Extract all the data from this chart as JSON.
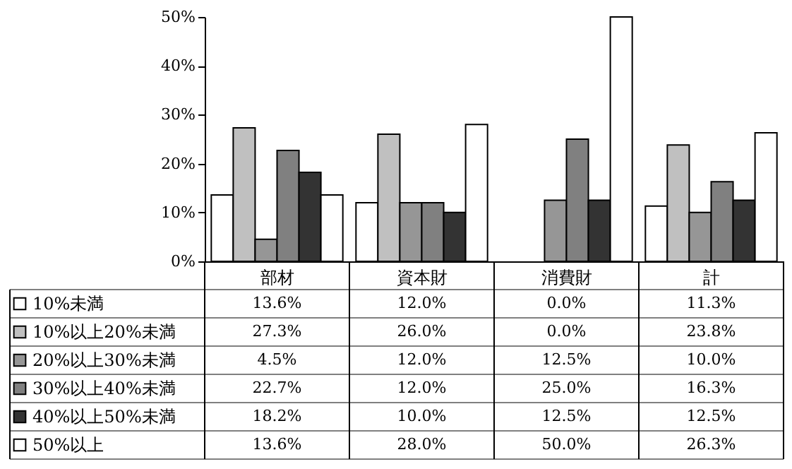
{
  "chart_data": {
    "type": "bar",
    "categories": [
      "部材",
      "資本財",
      "消費財",
      "計"
    ],
    "ylim": [
      0,
      50
    ],
    "yticks": [
      {
        "value": 0,
        "label": "0%"
      },
      {
        "value": 10,
        "label": "10%"
      },
      {
        "value": 20,
        "label": "20%"
      },
      {
        "value": 30,
        "label": "30%"
      },
      {
        "value": 40,
        "label": "40%"
      },
      {
        "value": 50,
        "label": "50%"
      }
    ],
    "legend": "bottom left",
    "grid": false,
    "series": [
      {
        "name": "10%未満",
        "color": "#ffffff",
        "values": [
          13.6,
          12.0,
          0.0,
          11.3
        ],
        "value_labels": [
          "13.6%",
          "12.0%",
          "0.0%",
          "11.3%"
        ]
      },
      {
        "name": "10%以上20%未満",
        "color": "#c0c0c0",
        "values": [
          27.3,
          26.0,
          0.0,
          23.8
        ],
        "value_labels": [
          "27.3%",
          "26.0%",
          "0.0%",
          "23.8%"
        ]
      },
      {
        "name": "20%以上30%未満",
        "color": "#969696",
        "values": [
          4.5,
          12.0,
          12.5,
          10.0
        ],
        "value_labels": [
          "4.5%",
          "12.0%",
          "12.5%",
          "10.0%"
        ]
      },
      {
        "name": "30%以上40%未満",
        "color": "#808080",
        "values": [
          22.7,
          12.0,
          25.0,
          16.3
        ],
        "value_labels": [
          "22.7%",
          "12.0%",
          "25.0%",
          "16.3%"
        ]
      },
      {
        "name": "40%以上50%未満",
        "color": "#333333",
        "values": [
          18.2,
          10.0,
          12.5,
          12.5
        ],
        "value_labels": [
          "18.2%",
          "10.0%",
          "12.5%",
          "12.5%"
        ]
      },
      {
        "name": "50%以上",
        "color": "#ffffff",
        "values": [
          13.6,
          28.0,
          50.0,
          26.3
        ],
        "value_labels": [
          "13.6%",
          "28.0%",
          "50.0%",
          "26.3%"
        ]
      }
    ]
  }
}
